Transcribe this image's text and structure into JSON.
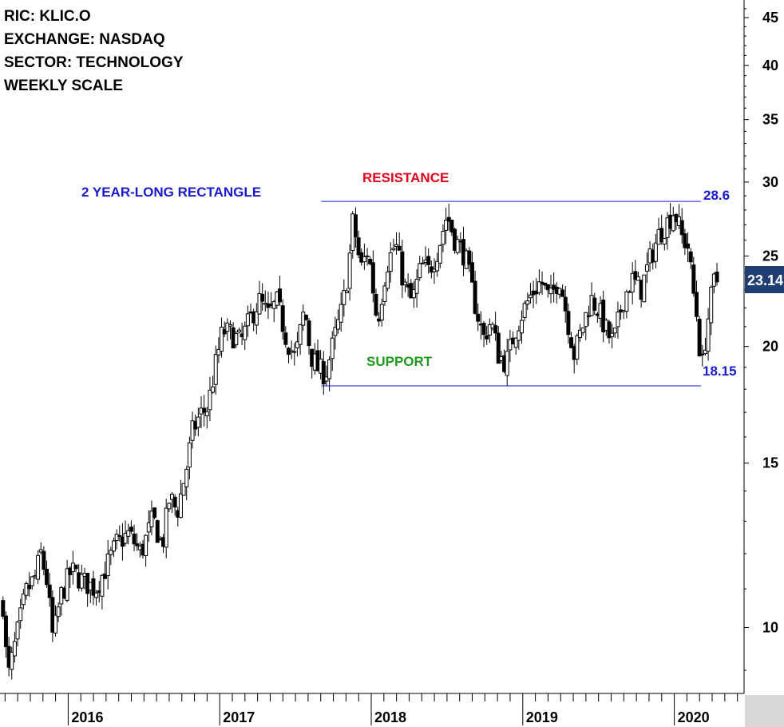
{
  "info": {
    "ric": "RIC: KLIC.O",
    "exchange": "EXCHANGE: NASDAQ",
    "sector": "SECTOR: TECHNOLOGY",
    "scale": "WEEKLY SCALE"
  },
  "colors": {
    "pattern": "#1a1acc",
    "resistance": "#e0001b",
    "support": "#1f9a1f",
    "last_price_box": "#1f3f73",
    "candle": "#000000"
  },
  "chart_data": {
    "type": "candlestick",
    "y_scale": "log",
    "ylim": [
      8.5,
      47
    ],
    "y_ticks": [
      10,
      15,
      20,
      25,
      30,
      35,
      40,
      45
    ],
    "x_range": [
      2015.55,
      2020.45
    ],
    "x_ticks": [
      {
        "label": "2016",
        "x": 2016.0
      },
      {
        "label": "2017",
        "x": 2017.0
      },
      {
        "label": "2018",
        "x": 2018.0
      },
      {
        "label": "2019",
        "x": 2019.0
      },
      {
        "label": "2020",
        "x": 2020.0
      }
    ],
    "annotations": {
      "pattern": "2 YEAR-LONG RECTANGLE",
      "resistance": "RESISTANCE",
      "support": "SUPPORT"
    },
    "levels": {
      "resistance": {
        "value": 28.6,
        "label": "28.6",
        "x_start": 2017.67
      },
      "support": {
        "value": 18.15,
        "label": "18.15",
        "x_start": 2017.67
      }
    },
    "last_price": {
      "value": 23.1,
      "label": "23.14"
    },
    "price_path": [
      [
        2015.57,
        10.6
      ],
      [
        2015.6,
        8.8
      ],
      [
        2015.65,
        9.6
      ],
      [
        2015.72,
        10.9
      ],
      [
        2015.78,
        11.3
      ],
      [
        2015.82,
        12.0
      ],
      [
        2015.86,
        11.2
      ],
      [
        2015.9,
        9.7
      ],
      [
        2015.95,
        10.8
      ],
      [
        2016.02,
        11.5
      ],
      [
        2016.1,
        11.2
      ],
      [
        2016.18,
        11.0
      ],
      [
        2016.25,
        11.6
      ],
      [
        2016.32,
        12.3
      ],
      [
        2016.4,
        12.6
      ],
      [
        2016.48,
        12.0
      ],
      [
        2016.56,
        13.1
      ],
      [
        2016.62,
        12.2
      ],
      [
        2016.67,
        13.8
      ],
      [
        2016.72,
        13.3
      ],
      [
        2016.78,
        14.8
      ],
      [
        2016.82,
        16.2
      ],
      [
        2016.87,
        16.9
      ],
      [
        2016.92,
        17.2
      ],
      [
        2016.97,
        19.0
      ],
      [
        2017.02,
        20.8
      ],
      [
        2017.08,
        20.6
      ],
      [
        2017.14,
        20.2
      ],
      [
        2017.2,
        21.4
      ],
      [
        2017.26,
        22.4
      ],
      [
        2017.32,
        21.6
      ],
      [
        2017.38,
        22.3
      ],
      [
        2017.44,
        20.4
      ],
      [
        2017.5,
        19.4
      ],
      [
        2017.56,
        22.0
      ],
      [
        2017.6,
        19.6
      ],
      [
        2017.65,
        18.9
      ],
      [
        2017.7,
        18.7
      ],
      [
        2017.76,
        20.5
      ],
      [
        2017.81,
        22.0
      ],
      [
        2017.85,
        24.2
      ],
      [
        2017.88,
        27.4
      ],
      [
        2017.93,
        24.2
      ],
      [
        2017.98,
        25.4
      ],
      [
        2018.04,
        21.2
      ],
      [
        2018.1,
        24.4
      ],
      [
        2018.16,
        25.8
      ],
      [
        2018.22,
        23.2
      ],
      [
        2018.27,
        22.3
      ],
      [
        2018.33,
        24.4
      ],
      [
        2018.38,
        24.1
      ],
      [
        2018.44,
        25.4
      ],
      [
        2018.5,
        27.7
      ],
      [
        2018.55,
        26.1
      ],
      [
        2018.62,
        25.0
      ],
      [
        2018.68,
        22.4
      ],
      [
        2018.74,
        20.4
      ],
      [
        2018.79,
        21.3
      ],
      [
        2018.84,
        19.6
      ],
      [
        2018.89,
        19.2
      ],
      [
        2018.95,
        20.8
      ],
      [
        2019.0,
        21.8
      ],
      [
        2019.06,
        22.8
      ],
      [
        2019.12,
        23.5
      ],
      [
        2019.18,
        22.4
      ],
      [
        2019.24,
        23.8
      ],
      [
        2019.3,
        21.2
      ],
      [
        2019.34,
        19.6
      ],
      [
        2019.39,
        20.9
      ],
      [
        2019.45,
        22.5
      ],
      [
        2019.5,
        21.9
      ],
      [
        2019.56,
        20.6
      ],
      [
        2019.6,
        20.2
      ],
      [
        2019.66,
        22.4
      ],
      [
        2019.72,
        23.6
      ],
      [
        2019.78,
        23.0
      ],
      [
        2019.84,
        24.8
      ],
      [
        2019.9,
        26.4
      ],
      [
        2019.95,
        27.1
      ],
      [
        2020.0,
        28.0
      ],
      [
        2020.05,
        26.2
      ],
      [
        2020.09,
        25.6
      ],
      [
        2020.12,
        23.2
      ],
      [
        2020.15,
        21.5
      ],
      [
        2020.18,
        18.8
      ],
      [
        2020.21,
        20.7
      ],
      [
        2020.24,
        22.4
      ],
      [
        2020.27,
        23.8
      ],
      [
        2020.3,
        23.1
      ]
    ]
  }
}
